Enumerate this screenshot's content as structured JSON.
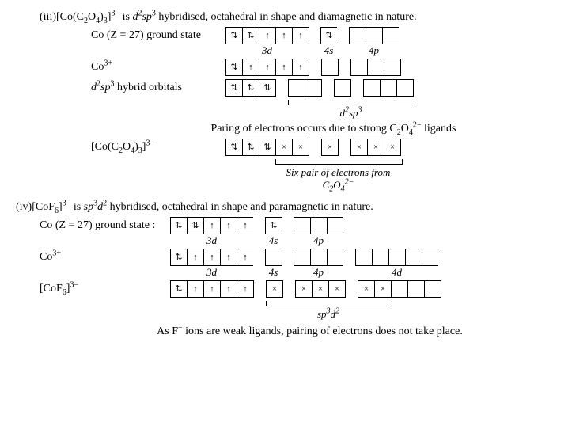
{
  "iii": {
    "heading_prefix": "(iii) ",
    "heading": "[Co(C₂O₄)₃]³⁻ is d²sp³ hybridised, octahedral in shape and diamagnetic in nature.",
    "rows": [
      {
        "label": "Co (Z = 27) ground state",
        "label_width": 170,
        "groups": [
          {
            "cells": [
              "⇅",
              "⇅",
              "↑",
              "↑",
              "↑"
            ],
            "sub": "3d"
          },
          {
            "cells": [
              "⇅"
            ],
            "sub": "4s"
          },
          {
            "cells": [
              "",
              "",
              ""
            ],
            "sub": "4p"
          }
        ],
        "show_sub": true
      },
      {
        "label": "Co³⁺",
        "label_width": 170,
        "groups": [
          {
            "cells": [
              "⇅",
              "↑",
              "↑",
              "↑",
              "↑"
            ]
          },
          {
            "cells": [
              ""
            ]
          },
          {
            "cells": [
              "",
              "",
              ""
            ]
          }
        ],
        "show_sub": false
      },
      {
        "label": "d²sp³ hybrid orbitals",
        "label_width": 170,
        "groups": [
          {
            "cells": [
              "⇅",
              "⇅",
              "⇅"
            ]
          },
          {
            "cells": [
              "",
              ""
            ]
          },
          {
            "cells": [
              ""
            ]
          },
          {
            "cells": [
              "",
              "",
              ""
            ]
          }
        ],
        "show_sub": false,
        "bracket": {
          "start_group": 1,
          "label": "d²sp³"
        }
      }
    ],
    "pairing_text": "Paring of electrons occurs due to strong C₂O₄²⁻ ligands",
    "complex_row": {
      "label": "[Co(C₂O₄)₃]³⁻",
      "label_width": 170,
      "groups": [
        {
          "cells": [
            "⇅",
            "⇅",
            "⇅",
            "×",
            "×"
          ]
        },
        {
          "cells": [
            "×"
          ]
        },
        {
          "cells": [
            "×",
            "×",
            "×"
          ]
        }
      ],
      "bracket": {
        "label": "Six pair of electrons from C₂O₄²⁻"
      }
    }
  },
  "iv": {
    "heading_prefix": "(iv) ",
    "heading": "[CoF₆]³⁻ is sp³d² hybridised, octahedral in shape and paramagnetic in nature.",
    "rows": [
      {
        "label": "Co (Z = 27) ground state :",
        "label_width": 165,
        "groups": [
          {
            "cells": [
              "⇅",
              "⇅",
              "↑",
              "↑",
              "↑"
            ],
            "sub": "3d"
          },
          {
            "cells": [
              "⇅"
            ],
            "sub": "4s"
          },
          {
            "cells": [
              "",
              "",
              ""
            ],
            "sub": "4p"
          }
        ],
        "show_sub": true
      },
      {
        "label": "Co³⁺",
        "label_width": 165,
        "groups": [
          {
            "cells": [
              "⇅",
              "↑",
              "↑",
              "↑",
              "↑"
            ],
            "sub": "3d"
          },
          {
            "cells": [
              ""
            ],
            "sub": "4s"
          },
          {
            "cells": [
              "",
              "",
              ""
            ],
            "sub": "4p"
          },
          {
            "cells": [
              "",
              "",
              "",
              "",
              ""
            ],
            "sub": "4d"
          }
        ],
        "show_sub": true
      },
      {
        "label": "[CoF₆]³⁻",
        "label_width": 165,
        "groups": [
          {
            "cells": [
              "⇅",
              "↑",
              "↑",
              "↑",
              "↑"
            ]
          },
          {
            "cells": [
              "×"
            ]
          },
          {
            "cells": [
              "×",
              "×",
              "×"
            ]
          },
          {
            "cells": [
              "×",
              "×",
              "",
              "",
              ""
            ]
          }
        ],
        "show_sub": false,
        "bracket": {
          "start_group": 1,
          "label": "sp³d²"
        }
      }
    ],
    "footer": "As F⁻ ions are weak ligands, pairing of electrons does not take place."
  },
  "style": {
    "ital_segments": [
      "d²sp³",
      "sp³d²"
    ]
  }
}
